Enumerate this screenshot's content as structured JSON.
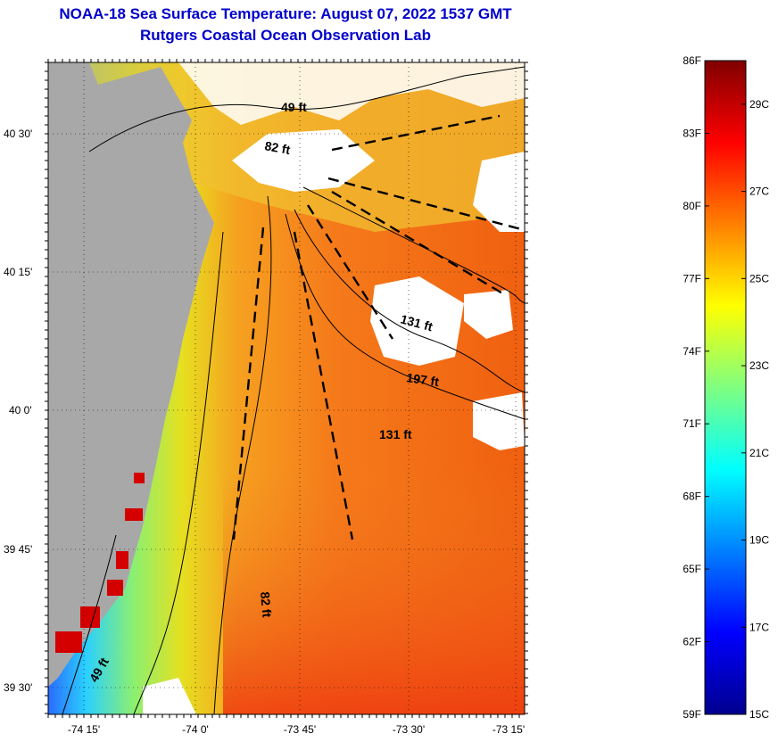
{
  "title_line1": "NOAA-18 Sea Surface Temperature:  August 07, 2022 1537 GMT",
  "title_line2": "Rutgers Coastal Ocean Observation Lab",
  "y_ticks": [
    "40 30'",
    "40 15'",
    "40 0'",
    "39 45'",
    "39 30'"
  ],
  "x_ticks": [
    "-74 15'",
    "-74 0'",
    "-73 45'",
    "-73 30'",
    "-73 15'"
  ],
  "contour_labels": [
    "49 ft",
    "82 ft",
    "131 ft",
    "197 ft",
    "131 ft",
    "82 ft",
    "49 ft"
  ],
  "colorbar": {
    "fahrenheit": [
      "86F",
      "83F",
      "80F",
      "77F",
      "74F",
      "71F",
      "68F",
      "65F",
      "62F",
      "59F"
    ],
    "celsius": [
      "29C",
      "27C",
      "25C",
      "23C",
      "21C",
      "19C",
      "17C",
      "15C"
    ]
  },
  "colors": {
    "title": "#0000cc",
    "land": "#a8a8a8",
    "cloud": "#ffffff"
  }
}
